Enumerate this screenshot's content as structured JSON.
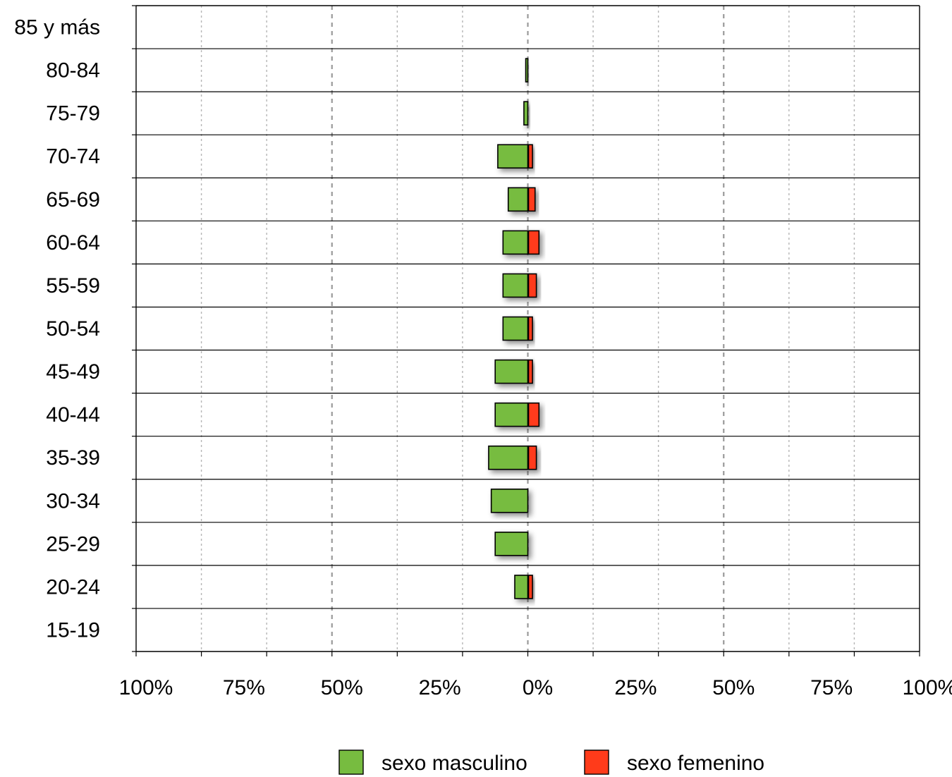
{
  "chart_data": {
    "type": "bar",
    "orientation": "horizontal",
    "layout": "population-pyramid",
    "categories": [
      "85 y más",
      "80-84",
      "75-79",
      "70-74",
      "65-69",
      "60-64",
      "55-59",
      "50-54",
      "45-49",
      "40-44",
      "35-39",
      "30-34",
      "25-29",
      "20-24",
      "15-19"
    ],
    "series": [
      {
        "name": "sexo masculino",
        "side": "left",
        "color": "#77bc40",
        "values": [
          0,
          0.8,
          1.5,
          11.5,
          7.5,
          9.5,
          9.5,
          9.5,
          12.5,
          12.5,
          15,
          14,
          12.5,
          5,
          0
        ]
      },
      {
        "name": "sexo femenino",
        "side": "right",
        "color": "#ff3b1a",
        "values": [
          0,
          0,
          0,
          1.5,
          2.5,
          4,
          3,
          1.5,
          1.5,
          4,
          3,
          0,
          0,
          1.5,
          0
        ]
      }
    ],
    "x_ticks": [
      "100%",
      "75%",
      "50%",
      "25%",
      "0%",
      "25%",
      "50%",
      "75%",
      "100%"
    ],
    "xlim": [
      -150,
      150
    ],
    "grid": true,
    "legend_position": "bottom"
  }
}
